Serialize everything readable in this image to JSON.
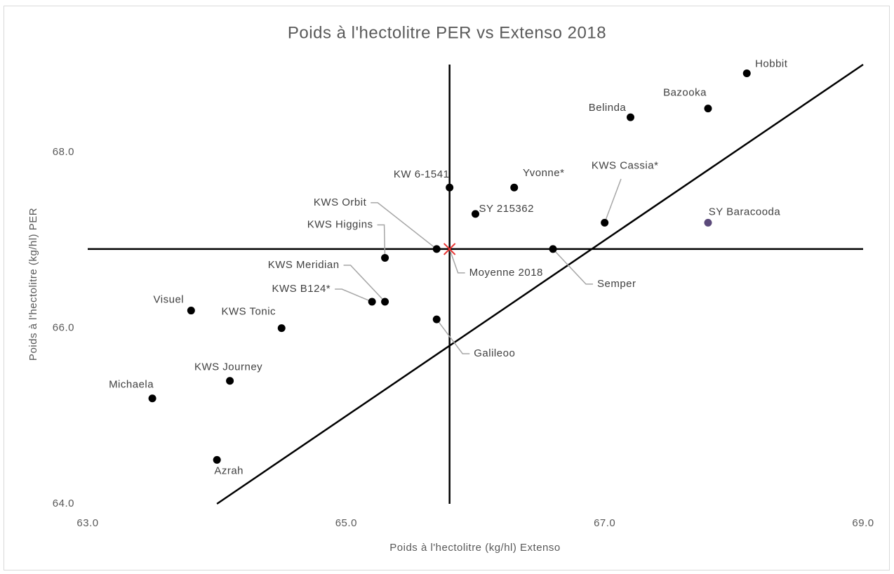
{
  "chart_data": {
    "type": "scatter",
    "title": "Poids à l'hectolitre PER vs Extenso 2018",
    "x_label": "Poids à l'hectolitre (kg/hl) Extenso",
    "y_label": "Poids à l'hectolitre (kg/hl) PER",
    "labels": [
      "Hobbit",
      "Bazooka",
      "Belinda",
      "KW 6-1541",
      "Yvonne*",
      "SY 215362",
      "KWS Cassia*",
      "SY Baracooda",
      "KWS Orbit",
      "Moyenne 2018",
      "KWS Higgins",
      "Semper",
      "KWS Meridian",
      "KWS B124*",
      "Visuel",
      "KWS Tonic",
      "Galileoo",
      "KWS Journey",
      "Michaela",
      "Azrah"
    ],
    "x": [
      68.1,
      67.8,
      67.2,
      65.8,
      66.3,
      66.0,
      67.0,
      67.8,
      65.7,
      65.8,
      65.3,
      66.6,
      65.3,
      65.2,
      63.8,
      64.5,
      65.7,
      64.1,
      63.5,
      64.0
    ],
    "values": [
      68.9,
      68.5,
      68.4,
      67.6,
      67.6,
      67.3,
      67.2,
      67.2,
      66.9,
      66.9,
      66.8,
      66.9,
      66.3,
      66.3,
      66.2,
      66.0,
      66.1,
      65.4,
      65.2,
      64.5
    ],
    "point_colors": [
      "#000000",
      "#000000",
      "#000000",
      "#000000",
      "#000000",
      "#000000",
      "#000000",
      "#5b4a7a",
      "#000000",
      "#e8312f",
      "#000000",
      "#000000",
      "#000000",
      "#000000",
      "#000000",
      "#000000",
      "#000000",
      "#000000",
      "#000000",
      "#000000"
    ],
    "markers": [
      "circle",
      "circle",
      "circle",
      "circle",
      "circle",
      "circle",
      "circle",
      "circle",
      "circle",
      "x",
      "circle",
      "circle",
      "circle",
      "circle",
      "circle",
      "circle",
      "circle",
      "circle",
      "circle",
      "circle"
    ],
    "xlim": [
      63,
      69
    ],
    "xticks": [
      {
        "value": 63,
        "label": "63.0"
      },
      {
        "value": 65,
        "label": "65.0"
      },
      {
        "value": 67,
        "label": "67.0"
      },
      {
        "value": 69,
        "label": "69.0"
      }
    ],
    "ylim": [
      64,
      69
    ],
    "yticks": [
      {
        "value": 64,
        "label": "64.0"
      },
      {
        "value": 66,
        "label": "66.0"
      },
      {
        "value": 68,
        "label": "68.0"
      }
    ],
    "reference_point": 9,
    "diagonal": true
  }
}
